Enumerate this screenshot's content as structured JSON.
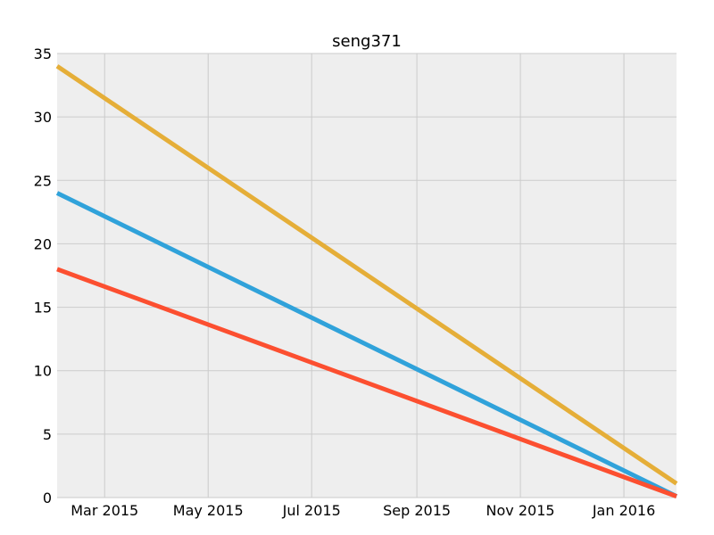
{
  "chart_data": {
    "type": "line",
    "title": "seng371",
    "xlabel": "",
    "ylabel": "",
    "x_axis_kind": "date",
    "xlim": [
      "2015-02-01",
      "2016-02-01"
    ],
    "ylim": [
      0,
      35
    ],
    "grid": true,
    "legend": "none",
    "background": "#eeeeee",
    "grid_color": "#cbcbcb",
    "x_ticks": [
      {
        "date": "2015-03-01",
        "label": "Mar 2015"
      },
      {
        "date": "2015-05-01",
        "label": "May 2015"
      },
      {
        "date": "2015-07-01",
        "label": "Jul 2015"
      },
      {
        "date": "2015-09-01",
        "label": "Sep 2015"
      },
      {
        "date": "2015-11-01",
        "label": "Nov 2015"
      },
      {
        "date": "2016-01-01",
        "label": "Jan 2016"
      }
    ],
    "y_ticks": [
      {
        "value": 0,
        "label": "0"
      },
      {
        "value": 5,
        "label": "5"
      },
      {
        "value": 10,
        "label": "10"
      },
      {
        "value": 15,
        "label": "15"
      },
      {
        "value": 20,
        "label": "20"
      },
      {
        "value": 25,
        "label": "25"
      },
      {
        "value": 30,
        "label": "30"
      },
      {
        "value": 35,
        "label": "35"
      }
    ],
    "series": [
      {
        "name": "series-yellow",
        "color": "#e5ae38",
        "x": [
          "2015-02-01",
          "2016-02-01"
        ],
        "values": [
          34,
          1.1
        ]
      },
      {
        "name": "series-blue",
        "color": "#30a2da",
        "x": [
          "2015-02-01",
          "2016-02-01"
        ],
        "values": [
          24,
          0.1
        ]
      },
      {
        "name": "series-red",
        "color": "#fc4f30",
        "x": [
          "2015-02-01",
          "2016-02-01"
        ],
        "values": [
          18,
          0.1
        ]
      }
    ]
  }
}
